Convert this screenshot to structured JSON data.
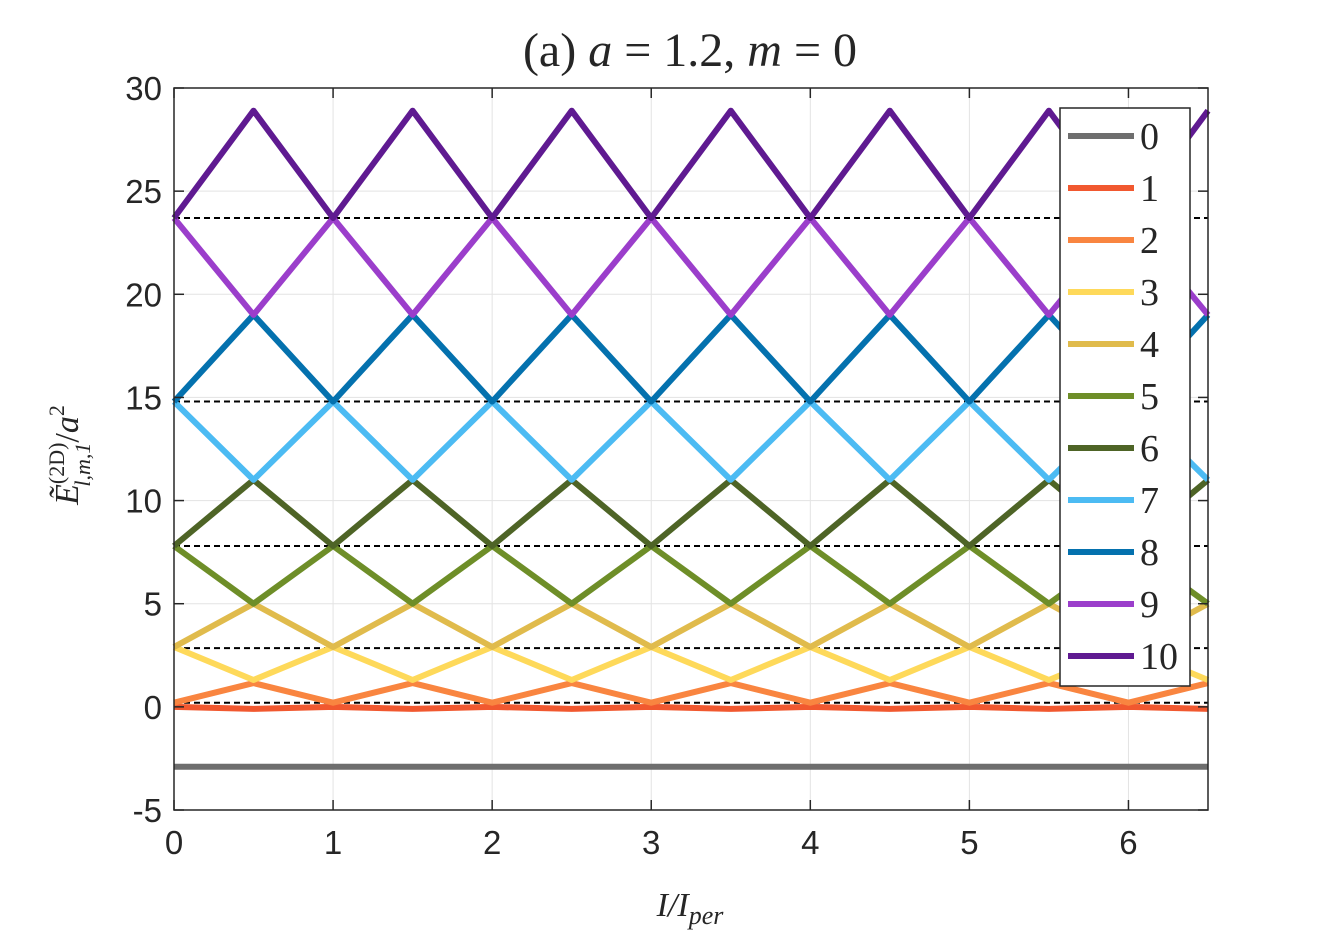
{
  "chart_data": {
    "type": "line",
    "title": "(a) a = 1.2, m = 0",
    "xlabel": "I/I_per",
    "ylabel": "~E^(2D)_{l,m,1}/a^2",
    "xlim": [
      0,
      6.5
    ],
    "ylim": [
      -5,
      30
    ],
    "x_ticks": [
      "0",
      "1",
      "2",
      "3",
      "4",
      "5",
      "6"
    ],
    "y_ticks": [
      "-5",
      "0",
      "5",
      "10",
      "15",
      "20",
      "25",
      "30"
    ],
    "grid": true,
    "legend_position": "top-right",
    "x": [
      0,
      0.5,
      1,
      1.5,
      2,
      2.5,
      3,
      3.5,
      4,
      4.5,
      5,
      5.5,
      6,
      6.5
    ],
    "series": [
      {
        "name": "0",
        "color": "#6e6e6e",
        "values": [
          -2.9,
          -2.9,
          -2.9,
          -2.9,
          -2.9,
          -2.9,
          -2.9,
          -2.9,
          -2.9,
          -2.9,
          -2.9,
          -2.9,
          -2.9,
          -2.9
        ]
      },
      {
        "name": "1",
        "color": "#f1582f",
        "values": [
          0.0,
          -0.1,
          0.0,
          -0.1,
          0.0,
          -0.1,
          0.0,
          -0.1,
          0.0,
          -0.1,
          0.0,
          -0.1,
          0.0,
          -0.1
        ]
      },
      {
        "name": "2",
        "color": "#f98540",
        "values": [
          0.2,
          1.15,
          0.2,
          1.15,
          0.2,
          1.15,
          0.2,
          1.15,
          0.2,
          1.15,
          0.2,
          1.15,
          0.2,
          1.15
        ]
      },
      {
        "name": "3",
        "color": "#fed95a",
        "values": [
          2.9,
          1.3,
          2.9,
          1.3,
          2.9,
          1.3,
          2.9,
          1.3,
          2.9,
          1.3,
          2.9,
          1.3,
          2.9,
          1.3
        ]
      },
      {
        "name": "4",
        "color": "#e0bb4c",
        "values": [
          2.9,
          5.0,
          2.9,
          5.0,
          2.9,
          5.0,
          2.9,
          5.0,
          2.9,
          5.0,
          2.9,
          5.0,
          2.9,
          5.0
        ]
      },
      {
        "name": "5",
        "color": "#6e8e28",
        "values": [
          7.8,
          5.0,
          7.8,
          5.0,
          7.8,
          5.0,
          7.8,
          5.0,
          7.8,
          5.0,
          7.8,
          5.0,
          7.8,
          5.0
        ]
      },
      {
        "name": "6",
        "color": "#4e6426",
        "values": [
          7.8,
          11.0,
          7.8,
          11.0,
          7.8,
          11.0,
          7.8,
          11.0,
          7.8,
          11.0,
          7.8,
          11.0,
          7.8,
          11.0
        ]
      },
      {
        "name": "7",
        "color": "#4cbbf3",
        "values": [
          14.8,
          11.0,
          14.8,
          11.0,
          14.8,
          11.0,
          14.8,
          11.0,
          14.8,
          11.0,
          14.8,
          11.0,
          14.8,
          11.0
        ]
      },
      {
        "name": "8",
        "color": "#0471ae",
        "values": [
          14.8,
          19.0,
          14.8,
          19.0,
          14.8,
          19.0,
          14.8,
          19.0,
          14.8,
          19.0,
          14.8,
          19.0,
          14.8,
          19.0
        ]
      },
      {
        "name": "9",
        "color": "#9b3ecb",
        "values": [
          23.7,
          19.0,
          23.7,
          19.0,
          23.7,
          19.0,
          23.7,
          19.0,
          23.7,
          19.0,
          23.7,
          19.0,
          23.7,
          19.0
        ]
      },
      {
        "name": "10",
        "color": "#5f1a91",
        "values": [
          23.7,
          28.9,
          23.7,
          28.9,
          23.7,
          28.9,
          23.7,
          28.9,
          23.7,
          28.9,
          23.7,
          28.9,
          23.7,
          28.9
        ]
      }
    ],
    "dashed_levels": [
      0.2,
      2.85,
      7.8,
      14.8,
      23.7
    ]
  }
}
